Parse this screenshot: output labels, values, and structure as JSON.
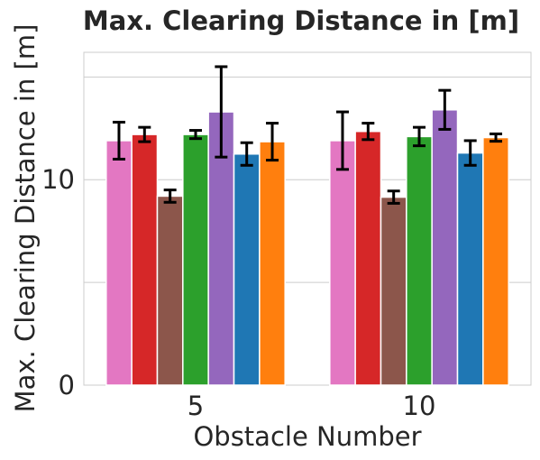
{
  "chart_data": {
    "type": "bar",
    "title": "Max. Clearing Distance in [m]",
    "xlabel": "Obstacle Number",
    "ylabel": "Max. Clearing Distance in [m]",
    "categories": [
      "5",
      "10"
    ],
    "yticks": [
      0,
      10
    ],
    "ylim": [
      0,
      16.2
    ],
    "grid": true,
    "legend": "none",
    "series": [
      {
        "color": "#e377c2",
        "values": [
          11.9,
          11.9
        ],
        "errors": [
          0.9,
          1.4
        ]
      },
      {
        "color": "#d62728",
        "values": [
          12.2,
          12.35
        ],
        "errors": [
          0.35,
          0.4
        ]
      },
      {
        "color": "#8c564b",
        "values": [
          9.2,
          9.15
        ],
        "errors": [
          0.3,
          0.3
        ]
      },
      {
        "color": "#2ca02c",
        "values": [
          12.2,
          12.1
        ],
        "errors": [
          0.2,
          0.45
        ]
      },
      {
        "color": "#9467bd",
        "values": [
          13.3,
          13.4
        ],
        "errors": [
          2.2,
          0.95
        ]
      },
      {
        "color": "#1f77b4",
        "values": [
          11.25,
          11.3
        ],
        "errors": [
          0.55,
          0.6
        ]
      },
      {
        "color": "#ff7f0e",
        "values": [
          11.85,
          12.05
        ],
        "errors": [
          0.9,
          0.18
        ]
      }
    ]
  }
}
